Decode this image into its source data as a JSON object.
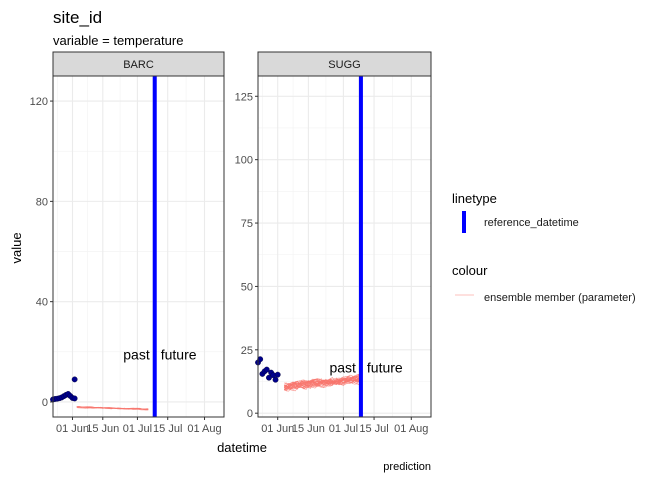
{
  "chart_data": {
    "type": "line",
    "title": "site_id",
    "subtitle": "variable = temperature",
    "xlabel": "datetime",
    "ylabel": "value",
    "caption": "prediction",
    "colors": {
      "observed": "#00008b",
      "ensemble": "#f8766d",
      "reference": "#0000ff",
      "strip_fill": "#d9d9d9",
      "grid": "#ebebeb"
    },
    "x_range": [
      "2023-05-23",
      "2023-08-10"
    ],
    "x_ticks": [
      {
        "date": "2023-06-01",
        "label": "01 Jun"
      },
      {
        "date": "2023-06-15",
        "label": "15 Jun"
      },
      {
        "date": "2023-07-01",
        "label": "01 Jul"
      },
      {
        "date": "2023-07-15",
        "label": "15 Jul"
      },
      {
        "date": "2023-08-01",
        "label": "01 Aug"
      }
    ],
    "annotations": {
      "past": "past",
      "future": "future"
    },
    "legend": [
      {
        "title": "linetype",
        "items": [
          {
            "label": "reference_datetime",
            "kind": "vline",
            "color": "#0000ff"
          }
        ]
      },
      {
        "title": "colour",
        "items": [
          {
            "label": "ensemble member (parameter)",
            "kind": "line",
            "color": "#f8766d"
          }
        ]
      }
    ],
    "panels": [
      {
        "strip": "BARC",
        "ylim": [
          -6,
          130
        ],
        "y_ticks": [
          0,
          40,
          80,
          120
        ],
        "reference_datetime": "2023-07-09",
        "annotation_y": 19,
        "observed": [
          {
            "x": "2023-05-23",
            "y": 1.0
          },
          {
            "x": "2023-05-24",
            "y": 1.2
          },
          {
            "x": "2023-05-25",
            "y": 1.3
          },
          {
            "x": "2023-05-26",
            "y": 1.5
          },
          {
            "x": "2023-05-27",
            "y": 1.8
          },
          {
            "x": "2023-05-28",
            "y": 2.3
          },
          {
            "x": "2023-05-29",
            "y": 2.8
          },
          {
            "x": "2023-05-30",
            "y": 3.2
          },
          {
            "x": "2023-05-31",
            "y": 2.4
          },
          {
            "x": "2023-06-01",
            "y": 1.6
          },
          {
            "x": "2023-06-02",
            "y": 1.4
          },
          {
            "x": "2023-06-02",
            "y": 9.0
          }
        ],
        "forecast": {
          "x_start": "2023-06-03",
          "x_end": "2023-07-06",
          "members": 8,
          "mean_start": -2.0,
          "mean_end": -3.0,
          "noise": 0.4
        }
      },
      {
        "strip": "SUGG",
        "ylim": [
          -1.5,
          133
        ],
        "y_ticks": [
          0,
          25,
          50,
          75,
          100,
          125
        ],
        "reference_datetime": "2023-07-09",
        "annotation_y": 18,
        "observed": [
          {
            "x": "2023-05-23",
            "y": 20.0
          },
          {
            "x": "2023-05-24",
            "y": 21.3
          },
          {
            "x": "2023-05-25",
            "y": 15.5
          },
          {
            "x": "2023-05-26",
            "y": 16.5
          },
          {
            "x": "2023-05-27",
            "y": 17.2
          },
          {
            "x": "2023-05-28",
            "y": 14.0
          },
          {
            "x": "2023-05-29",
            "y": 16.0
          },
          {
            "x": "2023-05-30",
            "y": 15.0
          },
          {
            "x": "2023-05-31",
            "y": 13.2
          },
          {
            "x": "2023-06-01",
            "y": 15.2
          }
        ],
        "forecast": {
          "x_start": "2023-06-04",
          "x_end": "2023-07-09",
          "members": 25,
          "mean_start": 10.5,
          "mean_end": 13.5,
          "noise": 2.2
        }
      }
    ]
  }
}
